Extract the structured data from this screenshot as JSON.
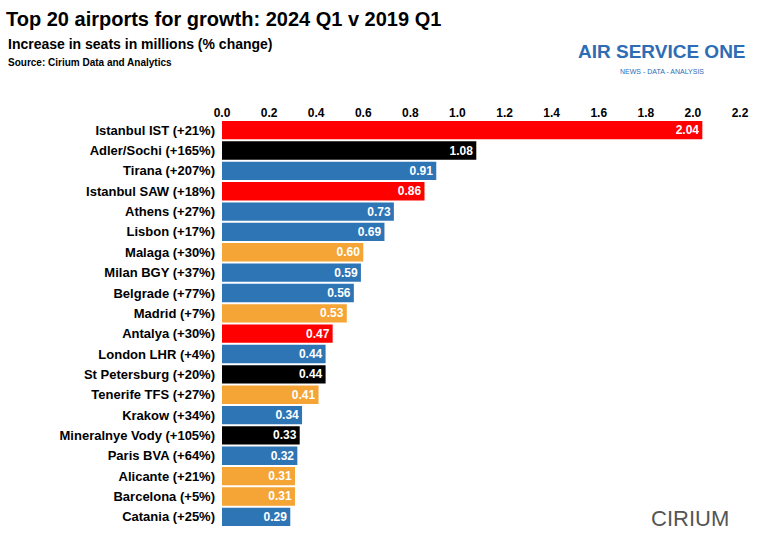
{
  "chart_data": {
    "type": "bar",
    "orientation": "horizontal",
    "title": "Top 20 airports for growth: 2024 Q1 v 2019 Q1",
    "subtitle": "Increase in seats in millions (% change)",
    "source": "Source: Cirium Data and Analytics",
    "annotations": [
      "AIR SERVICE ONE",
      "NEWS - DATA - ANALYSIS",
      "CIRIUM"
    ],
    "categories": [
      "Istanbul IST (+21%)",
      "Adler/Sochi (+165%)",
      "Tirana (+207%)",
      "Istanbul SAW (+18%)",
      "Athens (+27%)",
      "Lisbon (+17%)",
      "Malaga (+30%)",
      "Milan BGY (+37%)",
      "Belgrade (+77%)",
      "Madrid (+7%)",
      "Antalya (+30%)",
      "London LHR (+4%)",
      "St Petersburg (+20%)",
      "Tenerife TFS (+27%)",
      "Krakow (+34%)",
      "Mineralnye Vody (+105%)",
      "Paris BVA (+64%)",
      "Alicante (+21%)",
      "Barcelona (+5%)",
      "Catania (+25%)"
    ],
    "values": [
      2.04,
      1.08,
      0.91,
      0.86,
      0.73,
      0.69,
      0.6,
      0.59,
      0.56,
      0.53,
      0.47,
      0.44,
      0.44,
      0.41,
      0.34,
      0.33,
      0.32,
      0.31,
      0.31,
      0.29
    ],
    "value_labels": [
      "2.04",
      "1.08",
      "0.91",
      "0.86",
      "0.73",
      "0.69",
      "0.60",
      "0.59",
      "0.56",
      "0.53",
      "0.47",
      "0.44",
      "0.44",
      "0.41",
      "0.34",
      "0.33",
      "0.32",
      "0.31",
      "0.31",
      "0.29"
    ],
    "colors": [
      "#ff0000",
      "#000000",
      "#2e75b6",
      "#ff0000",
      "#2e75b6",
      "#2e75b6",
      "#f5a535",
      "#2e75b6",
      "#2e75b6",
      "#f5a535",
      "#ff0000",
      "#2e75b6",
      "#000000",
      "#f5a535",
      "#2e75b6",
      "#000000",
      "#2e75b6",
      "#f5a535",
      "#f5a535",
      "#2e75b6"
    ],
    "data_labels": true,
    "grid": false,
    "xlim": [
      0,
      2.2
    ],
    "xticks": [
      {
        "value": 0,
        "label": "0.0"
      },
      {
        "value": 0.2,
        "label": "0.2"
      },
      {
        "value": 0.4,
        "label": "0.4"
      },
      {
        "value": 0.6,
        "label": "0.6"
      },
      {
        "value": 0.8,
        "label": "0.8"
      },
      {
        "value": 1.0,
        "label": "1.0"
      },
      {
        "value": 1.2,
        "label": "1.2"
      },
      {
        "value": 1.4,
        "label": "1.4"
      },
      {
        "value": 1.6,
        "label": "1.6"
      },
      {
        "value": 1.8,
        "label": "1.8"
      },
      {
        "value": 2.0,
        "label": "2.0"
      },
      {
        "value": 2.2,
        "label": "2.2"
      }
    ]
  }
}
